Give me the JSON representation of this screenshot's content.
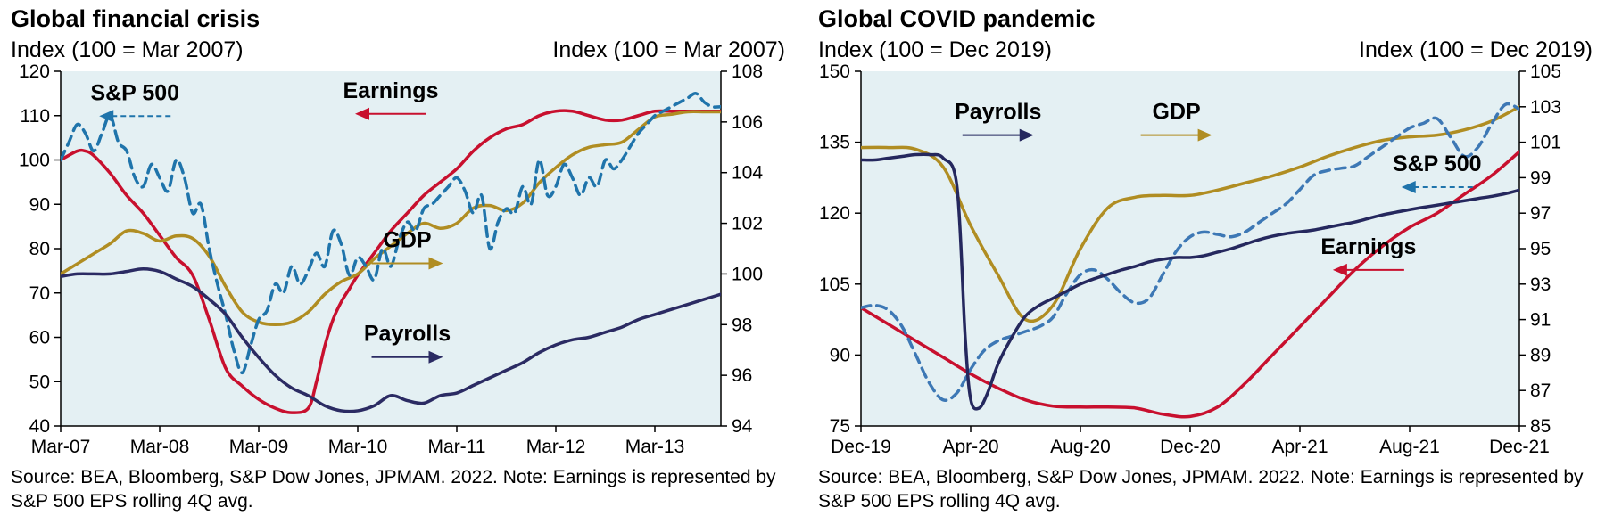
{
  "chart_data": [
    {
      "type": "line",
      "title": "Global financial crisis",
      "ylabel": "Index (100 = Mar 2007)",
      "y2label": "Index (100 = Mar 2007)",
      "ylim": [
        40,
        120
      ],
      "y2lim": [
        94,
        108
      ],
      "yticks": [
        40,
        50,
        60,
        70,
        80,
        90,
        100,
        110,
        120
      ],
      "y2ticks": [
        94,
        96,
        98,
        100,
        102,
        104,
        106,
        108
      ],
      "xlim": [
        0,
        80
      ],
      "xticks": [
        {
          "label": "Mar-07",
          "x": 0
        },
        {
          "label": "Mar-08",
          "x": 12
        },
        {
          "label": "Mar-09",
          "x": 24
        },
        {
          "label": "Mar-10",
          "x": 36
        },
        {
          "label": "Mar-11",
          "x": 48
        },
        {
          "label": "Mar-12",
          "x": 60
        },
        {
          "label": "Mar-13",
          "x": 72
        }
      ],
      "grid": false,
      "background": "#e4f0f3",
      "series": [
        {
          "name": "Earnings",
          "axis": "left",
          "color": "#c8102e",
          "dash": false,
          "x": [
            0,
            2,
            3,
            4,
            6,
            8,
            10,
            12,
            14,
            16,
            18,
            20,
            22,
            24,
            26,
            28,
            30,
            31,
            32,
            33,
            34,
            35,
            36,
            38,
            40,
            42,
            44,
            46,
            48,
            50,
            52,
            54,
            56,
            58,
            60,
            62,
            64,
            66,
            68,
            70,
            72,
            74,
            76,
            78,
            80
          ],
          "y": [
            100,
            102,
            102,
            101,
            97,
            92,
            88,
            83,
            78,
            74,
            64,
            53,
            49,
            46,
            44,
            43,
            44,
            50,
            58,
            64,
            68,
            71,
            74,
            79,
            84,
            88,
            92,
            95,
            98,
            102,
            105,
            107,
            108,
            110,
            111,
            111,
            110,
            109,
            109,
            110,
            111,
            111,
            111,
            111,
            111
          ]
        },
        {
          "name": "GDP",
          "axis": "right",
          "color": "#b08d22",
          "dash": false,
          "x": [
            0,
            2,
            4,
            6,
            8,
            10,
            12,
            14,
            16,
            18,
            20,
            22,
            24,
            26,
            28,
            30,
            32,
            34,
            36,
            38,
            40,
            42,
            44,
            46,
            48,
            50,
            52,
            54,
            56,
            58,
            60,
            62,
            64,
            66,
            68,
            70,
            72,
            74,
            76,
            78,
            80
          ],
          "y": [
            100,
            100.4,
            100.8,
            101.2,
            101.7,
            101.6,
            101.3,
            101.5,
            101.4,
            100.7,
            99.5,
            98.5,
            98.1,
            98.0,
            98.1,
            98.5,
            99.2,
            99.7,
            100.0,
            100.6,
            101.1,
            101.6,
            102.0,
            101.8,
            102.0,
            102.6,
            102.7,
            102.5,
            102.8,
            103.6,
            104.2,
            104.7,
            105.0,
            105.1,
            105.2,
            105.7,
            106.2,
            106.3,
            106.4,
            106.4,
            106.4
          ]
        },
        {
          "name": "S&P 500",
          "axis": "left",
          "color": "#1f74ab",
          "dash": true,
          "x": [
            0,
            1,
            2,
            3,
            4,
            5,
            6,
            7,
            8,
            9,
            10,
            11,
            12,
            13,
            14,
            15,
            16,
            17,
            18,
            19,
            20,
            21,
            22,
            23,
            24,
            25,
            26,
            27,
            28,
            29,
            30,
            31,
            32,
            33,
            34,
            35,
            36,
            37,
            38,
            39,
            40,
            41,
            42,
            43,
            44,
            45,
            46,
            47,
            48,
            49,
            50,
            51,
            52,
            53,
            54,
            55,
            56,
            57,
            58,
            59,
            60,
            61,
            62,
            63,
            64,
            65,
            66,
            67,
            68,
            69,
            70,
            71,
            72,
            73,
            74,
            75,
            76,
            77,
            78,
            79,
            80
          ],
          "y": [
            100,
            104,
            108,
            106,
            102,
            106,
            110,
            104,
            102,
            96,
            94,
            99,
            96,
            93,
            100,
            96,
            88,
            90,
            80,
            72,
            65,
            57,
            52,
            58,
            64,
            66,
            72,
            70,
            76,
            72,
            75,
            79,
            76,
            84,
            81,
            74,
            78,
            76,
            73,
            80,
            76,
            82,
            86,
            84,
            89,
            90,
            92,
            94,
            96,
            93,
            88,
            92,
            80,
            86,
            89,
            88,
            94,
            90,
            100,
            92,
            94,
            99,
            96,
            92,
            96,
            94,
            100,
            98,
            100,
            103,
            106,
            108,
            110,
            111,
            112,
            113,
            114,
            115,
            113,
            112,
            112
          ]
        },
        {
          "name": "Payrolls",
          "axis": "right",
          "color": "#2b2b63",
          "dash": false,
          "x": [
            0,
            2,
            4,
            6,
            8,
            10,
            12,
            14,
            16,
            18,
            20,
            22,
            24,
            26,
            28,
            30,
            32,
            34,
            36,
            38,
            40,
            42,
            44,
            46,
            48,
            50,
            52,
            54,
            56,
            58,
            60,
            62,
            64,
            66,
            68,
            70,
            72,
            74,
            76,
            78,
            80
          ],
          "y": [
            99.9,
            100.0,
            100.0,
            100.0,
            100.1,
            100.2,
            100.1,
            99.8,
            99.5,
            99.0,
            98.4,
            97.5,
            96.7,
            96.0,
            95.5,
            95.2,
            94.8,
            94.6,
            94.6,
            94.8,
            95.2,
            95.0,
            94.9,
            95.2,
            95.3,
            95.6,
            95.9,
            96.2,
            96.5,
            96.9,
            97.2,
            97.4,
            97.5,
            97.7,
            97.9,
            98.2,
            98.4,
            98.6,
            98.8,
            99.0,
            99.2
          ]
        }
      ],
      "annotations": [
        {
          "text": "S&P 500",
          "x": 9,
          "y": 111.5,
          "axis": "left",
          "arrow": "left",
          "color": "#1f74ab",
          "dash": true
        },
        {
          "text": "Earnings",
          "x": 40,
          "y": 112,
          "axis": "left",
          "arrow": "left",
          "color": "#c8102e",
          "dash": false
        },
        {
          "text": "GDP",
          "x": 42,
          "y": 100.7,
          "axis": "right",
          "arrow": "right",
          "color": "#b08d22",
          "dash": false
        },
        {
          "text": "Payrolls",
          "x": 42,
          "y": 97,
          "axis": "right",
          "arrow": "right",
          "color": "#2b2b63",
          "dash": false
        }
      ],
      "source_note": "Source: BEA, Bloomberg, S&P Dow Jones, JPMAM. 2022. Note: Earnings is represented by S&P 500 EPS rolling 4Q avg."
    },
    {
      "type": "line",
      "title": "Global COVID pandemic",
      "ylabel": "Index (100 = Dec 2019)",
      "y2label": "Index (100 = Dec 2019)",
      "ylim": [
        75,
        150
      ],
      "y2lim": [
        85,
        105
      ],
      "yticks": [
        75,
        90,
        105,
        120,
        135,
        150
      ],
      "y2ticks": [
        85,
        87,
        89,
        91,
        93,
        95,
        97,
        99,
        101,
        103,
        105
      ],
      "xlim": [
        0,
        24
      ],
      "xticks": [
        {
          "label": "Dec-19",
          "x": 0
        },
        {
          "label": "Apr-20",
          "x": 4
        },
        {
          "label": "Aug-20",
          "x": 8
        },
        {
          "label": "Dec-20",
          "x": 12
        },
        {
          "label": "Apr-21",
          "x": 16
        },
        {
          "label": "Aug-21",
          "x": 20
        },
        {
          "label": "Dec-21",
          "x": 24
        }
      ],
      "grid": false,
      "background": "#e4f0f3",
      "series": [
        {
          "name": "Earnings",
          "axis": "left",
          "color": "#c8102e",
          "dash": false,
          "x": [
            0,
            1,
            2,
            3,
            4,
            5,
            6,
            7,
            8,
            9,
            10,
            11,
            12,
            13,
            14,
            15,
            16,
            17,
            18,
            19,
            20,
            21,
            22,
            23,
            24
          ],
          "y": [
            100,
            96.5,
            93,
            89.5,
            86,
            83,
            80.5,
            79.2,
            79,
            79,
            78.8,
            77.5,
            77,
            79,
            84,
            90,
            96,
            102,
            108,
            113,
            117,
            120,
            124,
            128,
            133
          ]
        },
        {
          "name": "GDP",
          "axis": "right",
          "color": "#b08d22",
          "dash": false,
          "x": [
            0,
            1,
            2,
            3,
            4,
            5,
            6,
            7,
            8,
            9,
            10,
            11,
            12,
            13,
            14,
            15,
            16,
            17,
            18,
            19,
            20,
            21,
            22,
            23,
            24
          ],
          "y": [
            100.7,
            100.7,
            100.6,
            99.6,
            96.3,
            93.5,
            91.0,
            91.8,
            95.0,
            97.3,
            97.9,
            98.0,
            98.0,
            98.3,
            98.7,
            99.1,
            99.6,
            100.2,
            100.7,
            101.1,
            101.3,
            101.4,
            101.7,
            102.2,
            103.0
          ]
        },
        {
          "name": "S&P 500",
          "axis": "left",
          "color": "#3d78b5",
          "dash": true,
          "x": [
            0,
            0.5,
            1,
            1.5,
            2,
            2.5,
            3,
            3.5,
            4,
            4.5,
            5,
            5.5,
            6,
            6.5,
            7,
            7.5,
            8,
            8.5,
            9,
            9.5,
            10,
            10.5,
            11,
            11.5,
            12,
            12.5,
            13,
            13.5,
            14,
            14.5,
            15,
            15.5,
            16,
            16.5,
            17,
            17.5,
            18,
            18.5,
            19,
            19.5,
            20,
            20.5,
            21,
            21.5,
            22,
            22.5,
            23,
            23.5,
            24
          ],
          "y": [
            100,
            100.5,
            99.5,
            96,
            90,
            84,
            80.5,
            82,
            87,
            91,
            93,
            94,
            95,
            96,
            98,
            103,
            107,
            108,
            106,
            103,
            101,
            102,
            107,
            112,
            115,
            116,
            115.5,
            115,
            116,
            118,
            120,
            122,
            125,
            128,
            129,
            129.5,
            130,
            132,
            134,
            136,
            138,
            139,
            140,
            136,
            132,
            134,
            139,
            143,
            142
          ]
        },
        {
          "name": "Payrolls",
          "axis": "right",
          "color": "#25285e",
          "dash": false,
          "x": [
            0,
            0.5,
            1,
            1.5,
            2,
            2.5,
            3,
            3.5,
            3.8,
            4,
            4.3,
            4.6,
            5,
            5.5,
            6,
            6.5,
            7,
            7.5,
            8,
            8.5,
            9,
            9.5,
            10,
            10.5,
            11,
            11.5,
            12,
            12.5,
            13,
            13.5,
            14,
            14.5,
            15,
            15.5,
            16,
            16.5,
            17,
            17.5,
            18,
            18.5,
            19,
            19.5,
            20,
            20.5,
            21,
            21.5,
            22,
            22.5,
            23,
            23.5,
            24
          ],
          "y": [
            100.0,
            100.0,
            100.1,
            100.2,
            100.3,
            100.3,
            100.1,
            98.5,
            90.0,
            86.5,
            86.0,
            86.8,
            88.5,
            90.0,
            91.2,
            91.8,
            92.2,
            92.6,
            93.0,
            93.3,
            93.55,
            93.8,
            94.0,
            94.25,
            94.4,
            94.5,
            94.5,
            94.6,
            94.8,
            95.0,
            95.25,
            95.5,
            95.7,
            95.85,
            95.95,
            96.05,
            96.2,
            96.35,
            96.5,
            96.7,
            96.9,
            97.05,
            97.2,
            97.33,
            97.45,
            97.58,
            97.7,
            97.83,
            97.95,
            98.1,
            98.3
          ]
        }
      ],
      "annotations": [
        {
          "text": "Payrolls",
          "x": 5,
          "y": 101.8,
          "axis": "right",
          "arrow": "right",
          "color": "#25285e",
          "dash": false
        },
        {
          "text": "GDP",
          "x": 11.5,
          "y": 101.8,
          "axis": "right",
          "arrow": "right",
          "color": "#b08d22",
          "dash": false
        },
        {
          "text": "S&P 500",
          "x": 21,
          "y": 127,
          "axis": "left",
          "arrow": "left",
          "color": "#1f74ab",
          "dash": true
        },
        {
          "text": "Earnings",
          "x": 18.5,
          "y": 109.5,
          "axis": "left",
          "arrow": "left",
          "color": "#c8102e",
          "dash": false
        }
      ],
      "source_note": "Source: BEA, Bloomberg, S&P Dow Jones, JPMAM. 2022. Note: Earnings is represented by S&P 500 EPS rolling 4Q avg."
    }
  ]
}
